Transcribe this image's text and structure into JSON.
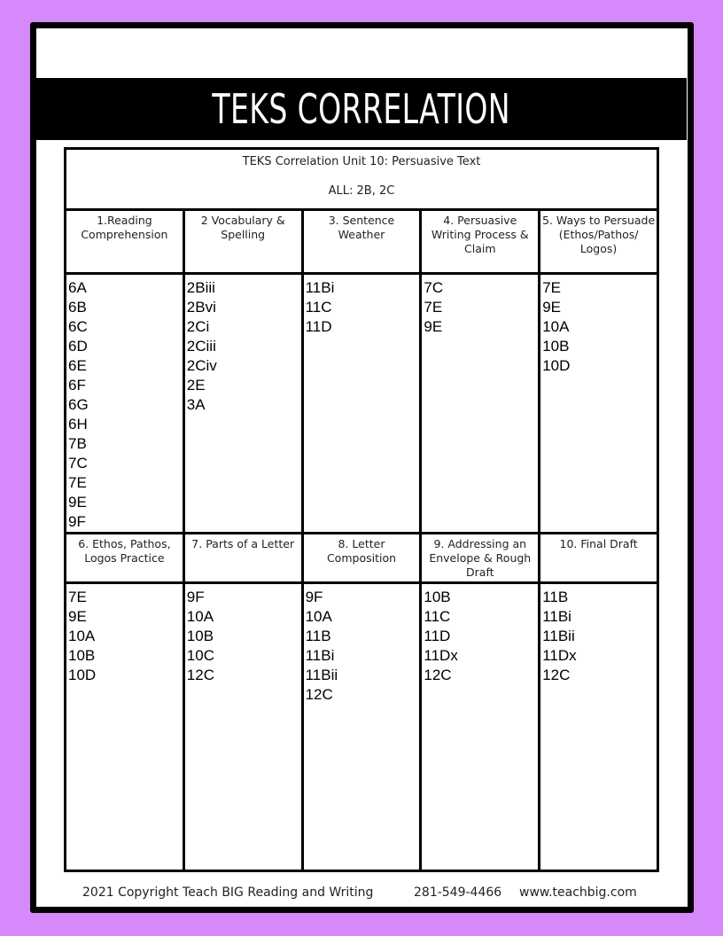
{
  "title": "TEKS CORRELATION",
  "table": {
    "caption": "TEKS Correlation Unit 10: Persuasive Text",
    "all": "ALL: 2B, 2C",
    "row1": [
      {
        "header": "1.Reading Comprehension",
        "items": [
          "6A",
          "6B",
          "6C",
          "6D",
          "6E",
          "6F",
          "6G",
          "6H",
          "7B",
          "7C",
          "7E",
          "9E",
          "9F"
        ]
      },
      {
        "header": "2 Vocabulary & Spelling",
        "items": [
          "2Biii",
          "2Bvi",
          "2Ci",
          "2Ciii",
          "2Civ",
          "2E",
          "3A"
        ]
      },
      {
        "header": "3. Sentence Weather",
        "items": [
          "11Bi",
          "11C",
          "11D"
        ]
      },
      {
        "header": "4. Persuasive Writing Process & Claim",
        "items": [
          "7C",
          "7E",
          "9E"
        ]
      },
      {
        "header": "5. Ways to Persuade (Ethos/Pathos/ Logos)",
        "items": [
          "7E",
          "9E",
          "10A",
          "10B",
          "10D"
        ]
      }
    ],
    "row2": [
      {
        "header": "6. Ethos, Pathos, Logos Practice",
        "items": [
          "7E",
          "9E",
          "10A",
          "10B",
          "10D"
        ]
      },
      {
        "header": "7. Parts of a Letter",
        "items": [
          "9F",
          "10A",
          "10B",
          "10C",
          "12C"
        ]
      },
      {
        "header": "8. Letter Composition",
        "items": [
          "9F",
          "10A",
          "11B",
          "11Bi",
          "11Bii",
          "12C"
        ]
      },
      {
        "header": "9. Addressing an Envelope & Rough Draft",
        "items": [
          "10B",
          "11C",
          "11D",
          "11Dx",
          "12C"
        ]
      },
      {
        "header": "10. Final Draft",
        "items": [
          "11B",
          "11Bi",
          "11Bii",
          "11Dx",
          "12C"
        ]
      }
    ]
  },
  "footer": {
    "copyright": "2021 Copyright Teach BIG Reading and Writing",
    "phone": "281-549-4466",
    "website": "www.teachbig.com"
  },
  "colors": {
    "background": "#d689fb",
    "frame": "#000000",
    "titlebar": "#000000"
  }
}
